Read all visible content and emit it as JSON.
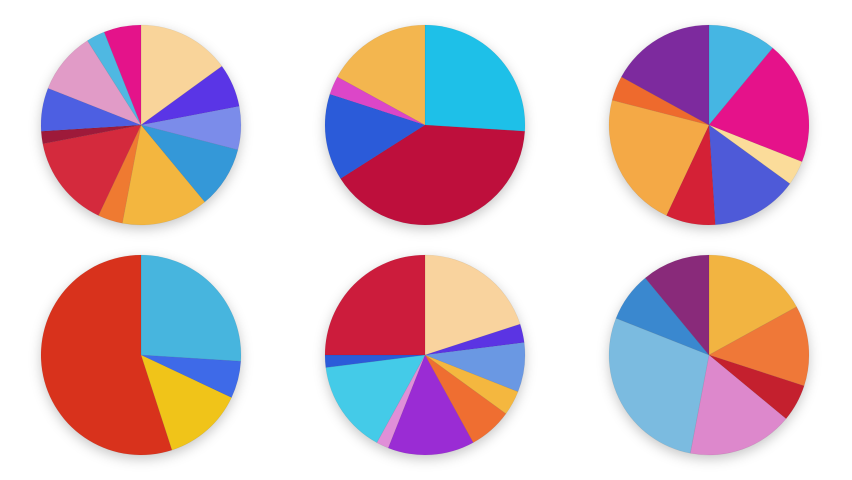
{
  "chart_data": [
    {
      "type": "pie",
      "values": [
        15,
        7,
        7,
        10,
        14,
        4,
        15,
        2,
        7,
        10,
        3,
        6
      ],
      "colors": [
        "#f9d49a",
        "#5a35e6",
        "#7b8cea",
        "#3498d8",
        "#f3b63f",
        "#ef7a31",
        "#d42a3d",
        "#9e1a3a",
        "#4d5fe2",
        "#e19bc7",
        "#4fb8e2",
        "#e4138a"
      ]
    },
    {
      "type": "pie",
      "values": [
        26,
        40,
        14,
        3,
        17
      ],
      "colors": [
        "#1ec0e8",
        "#be0f3c",
        "#2b5bd9",
        "#dc46c8",
        "#f3b64f"
      ]
    },
    {
      "type": "pie",
      "values": [
        11,
        20,
        4,
        14,
        8,
        22,
        4,
        17
      ],
      "colors": [
        "#45b6e3",
        "#e5128a",
        "#fbdc9a",
        "#4e5ad8",
        "#d42136",
        "#f4a946",
        "#ee6a2d",
        "#7d2a9e"
      ]
    },
    {
      "type": "pie",
      "values": [
        26,
        6,
        13,
        55
      ],
      "colors": [
        "#47b5de",
        "#3e6ae8",
        "#f0c419",
        "#d8321c"
      ]
    },
    {
      "type": "pie",
      "values": [
        20,
        3,
        8,
        4,
        7,
        14,
        2,
        15,
        2,
        25
      ],
      "colors": [
        "#f9d39e",
        "#5b34e3",
        "#6a98e3",
        "#f4b73f",
        "#ef6e31",
        "#9a2cd4",
        "#e08fd8",
        "#44cbe8",
        "#2b5bd9",
        "#cc1c3c"
      ]
    },
    {
      "type": "pie",
      "values": [
        17,
        13,
        6,
        17,
        28,
        8,
        11
      ],
      "colors": [
        "#f2b441",
        "#ef7838",
        "#c4202e",
        "#dd88cc",
        "#7bbbe0",
        "#3a88cf",
        "#892a7a"
      ]
    }
  ]
}
